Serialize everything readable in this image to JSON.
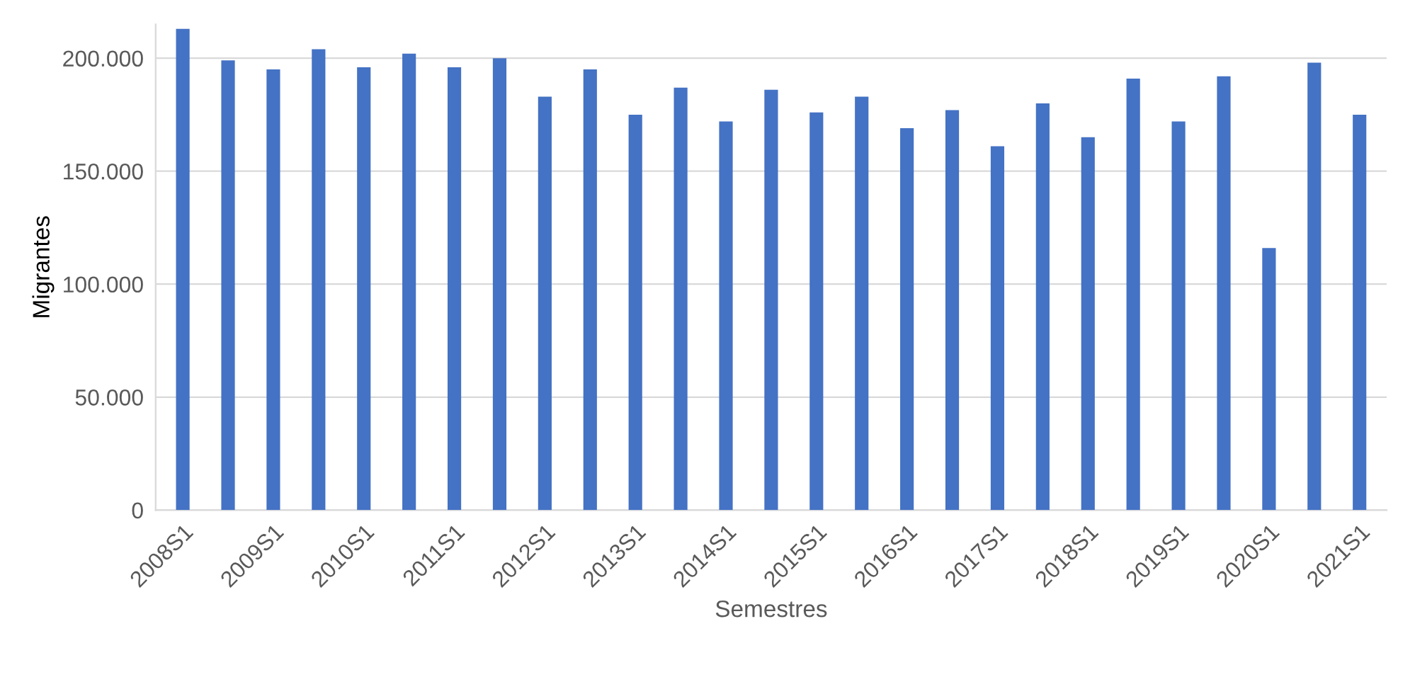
{
  "chart_data": {
    "type": "bar",
    "xlabel": "Semestres",
    "ylabel": "Migrantes",
    "categories": [
      "2008S1",
      null,
      "2009S1",
      null,
      "2010S1",
      null,
      "2011S1",
      null,
      "2012S1",
      null,
      "2013S1",
      null,
      "2014S1",
      null,
      "2015S1",
      null,
      "2016S1",
      null,
      "2017S1",
      null,
      "2018S1",
      null,
      "2019S1",
      null,
      "2020S1",
      null,
      "2021S1"
    ],
    "values": [
      213000,
      199000,
      195000,
      204000,
      196000,
      202000,
      196000,
      200000,
      183000,
      195000,
      175000,
      187000,
      172000,
      186000,
      176000,
      183000,
      169000,
      177000,
      161000,
      180000,
      165000,
      191000,
      172000,
      192000,
      116000,
      198000,
      175000
    ],
    "color": "#4472c4",
    "ylim": [
      0,
      215000
    ],
    "yticks": [
      {
        "value": 0,
        "label": "0"
      },
      {
        "value": 50000,
        "label": "50.000"
      },
      {
        "value": 100000,
        "label": "100.000"
      },
      {
        "value": 150000,
        "label": "150.000"
      },
      {
        "value": 200000,
        "label": "200.000"
      }
    ],
    "grid": "y"
  }
}
